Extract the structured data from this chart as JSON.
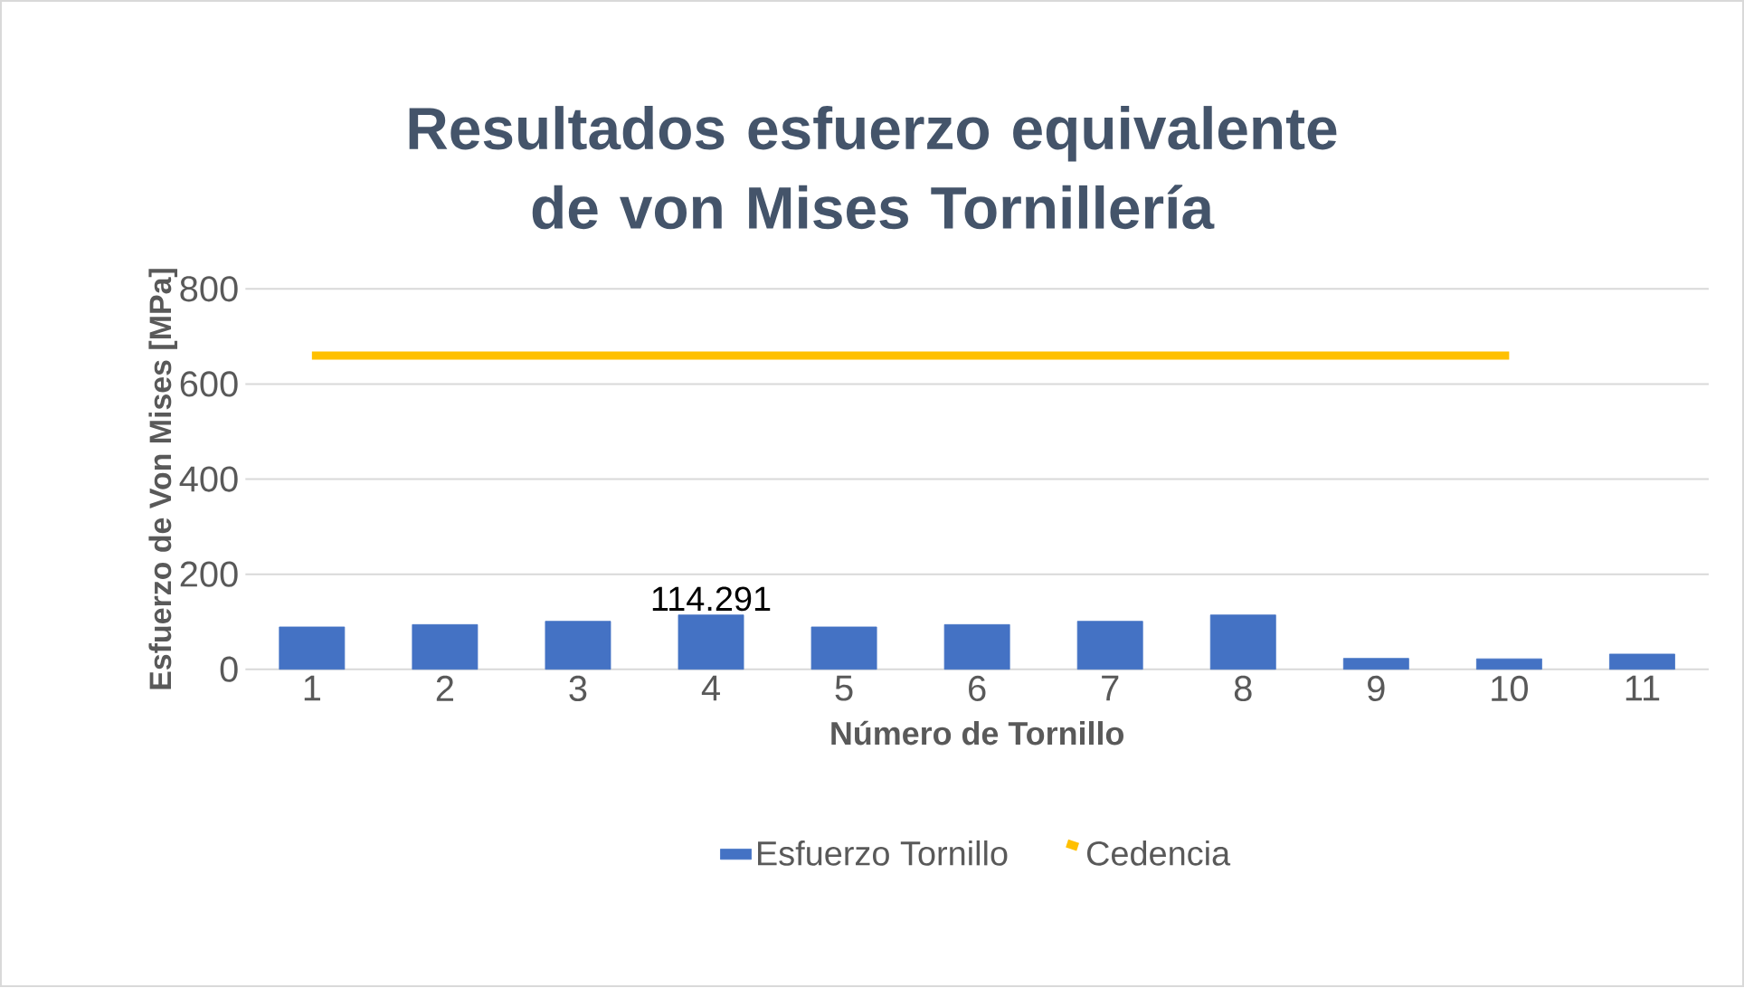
{
  "chart_data": {
    "type": "bar",
    "title": "Resultados esfuerzo equivalente de von Mises Tornillería",
    "xlabel": "Número de Tornillo",
    "ylabel": "Esfuerzo de Von Mises [MPa]",
    "categories": [
      "1",
      "2",
      "3",
      "4",
      "5",
      "6",
      "7",
      "8",
      "9",
      "10",
      "11"
    ],
    "series": [
      {
        "name": "Esfuerzo Tornillo",
        "color": "#4472c4",
        "values": [
          89,
          94,
          101,
          114.291,
          89,
          94,
          101,
          114.291,
          23,
          22,
          32
        ],
        "value_labels": [
          null,
          null,
          null,
          "114.291",
          null,
          null,
          null,
          null,
          null,
          null,
          null
        ]
      },
      {
        "name": "Cedencia",
        "type": "line",
        "color": "#ffc000",
        "values": [
          660,
          660,
          660,
          660,
          660,
          660,
          660,
          660,
          660,
          660,
          null
        ]
      }
    ],
    "ylim": [
      0,
      800
    ],
    "yticks": [
      0,
      200,
      400,
      600,
      800
    ],
    "grid": "y",
    "legend": "bottom"
  }
}
